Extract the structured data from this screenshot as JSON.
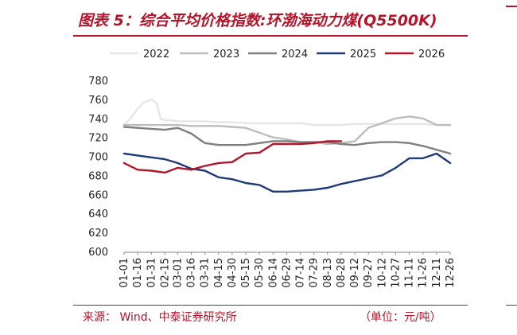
{
  "header": {
    "title": "图表 5：综合平均价格指数:环渤海动力煤(Q5500K)"
  },
  "footer": {
    "source": "来源：  Wind、中泰证券研究所",
    "unit": "（单位：元/吨）"
  },
  "colors": {
    "accent": "#b3152b",
    "s2022": "#e6e6e6",
    "s2023": "#bdbdbd",
    "s2024": "#7f7f7f",
    "s2025": "#1f3a78",
    "s2026": "#b3152b"
  },
  "chart_data": {
    "type": "line",
    "title": "",
    "xlabel": "",
    "ylabel": "",
    "ylim": [
      600,
      780
    ],
    "yticks": [
      600,
      620,
      640,
      660,
      680,
      700,
      720,
      740,
      760,
      780
    ],
    "xticks": [
      "01-01",
      "01-16",
      "01-31",
      "02-15",
      "03-01",
      "03-16",
      "03-31",
      "04-15",
      "04-30",
      "05-15",
      "05-30",
      "06-14",
      "06-29",
      "07-14",
      "07-29",
      "08-13",
      "08-28",
      "09-12",
      "09-27",
      "10-12",
      "10-27",
      "11-11",
      "11-26",
      "12-11",
      "12-26"
    ],
    "legend": {
      "position": "top",
      "entries": [
        "2022",
        "2023",
        "2024",
        "2025",
        "2026"
      ]
    },
    "grid": false,
    "series": [
      {
        "name": "2022",
        "x": [
          "01-01",
          "01-08",
          "01-16",
          "01-23",
          "01-31",
          "02-06",
          "02-10",
          "02-15",
          "02-22",
          "03-01",
          "03-16",
          "03-31",
          "04-15",
          "04-30",
          "05-15",
          "05-30",
          "06-14",
          "06-29",
          "07-14",
          "07-29",
          "08-13",
          "08-28",
          "09-12",
          "09-27",
          "10-12",
          "10-27",
          "11-11",
          "11-26",
          "12-11",
          "12-26"
        ],
        "values": [
          733,
          740,
          750,
          757,
          760,
          756,
          740,
          738,
          738,
          737,
          737,
          737,
          736,
          736,
          735,
          735,
          735,
          735,
          735,
          733,
          733,
          733,
          734,
          734,
          734,
          734,
          734,
          734,
          733,
          733
        ]
      },
      {
        "name": "2023",
        "x": [
          "01-01",
          "01-16",
          "01-31",
          "02-15",
          "03-01",
          "03-16",
          "03-31",
          "04-15",
          "04-30",
          "05-15",
          "05-30",
          "06-14",
          "06-29",
          "07-14",
          "07-29",
          "08-13",
          "08-28",
          "09-12",
          "09-27",
          "10-12",
          "10-27",
          "11-11",
          "11-26",
          "12-11",
          "12-26"
        ],
        "values": [
          733,
          733,
          733,
          733,
          733,
          732,
          732,
          732,
          731,
          730,
          725,
          720,
          718,
          715,
          715,
          713,
          714,
          716,
          730,
          735,
          740,
          742,
          740,
          733,
          733
        ]
      },
      {
        "name": "2024",
        "x": [
          "01-01",
          "01-16",
          "01-31",
          "02-15",
          "03-01",
          "03-16",
          "03-31",
          "04-15",
          "04-30",
          "05-15",
          "05-30",
          "06-14",
          "06-29",
          "07-14",
          "07-29",
          "08-13",
          "08-28",
          "09-12",
          "09-27",
          "10-12",
          "10-27",
          "11-11",
          "11-26",
          "12-11",
          "12-26"
        ],
        "values": [
          731,
          730,
          729,
          728,
          730,
          724,
          714,
          712,
          712,
          712,
          714,
          716,
          716,
          715,
          715,
          715,
          713,
          712,
          714,
          715,
          715,
          714,
          711,
          707,
          703
        ]
      },
      {
        "name": "2025",
        "x": [
          "01-01",
          "01-16",
          "01-31",
          "02-15",
          "03-01",
          "03-16",
          "03-31",
          "04-15",
          "04-30",
          "05-15",
          "05-30",
          "06-14",
          "06-29",
          "07-14",
          "07-29",
          "08-13",
          "08-28",
          "09-12",
          "09-27",
          "10-12",
          "10-27",
          "11-11",
          "11-26",
          "12-11",
          "12-26"
        ],
        "values": [
          703,
          701,
          699,
          697,
          693,
          687,
          685,
          678,
          676,
          672,
          670,
          663,
          663,
          664,
          665,
          667,
          671,
          674,
          677,
          680,
          688,
          698,
          698,
          703,
          693
        ]
      },
      {
        "name": "2026",
        "x": [
          "01-01",
          "01-16",
          "01-31",
          "02-15",
          "03-01",
          "03-16",
          "03-31",
          "04-15",
          "04-30",
          "05-15",
          "05-30",
          "06-14",
          "06-29",
          "07-14",
          "07-29",
          "08-13",
          "08-28"
        ],
        "values": [
          693,
          686,
          685,
          683,
          688,
          686,
          690,
          693,
          694,
          703,
          704,
          713,
          713,
          713,
          714,
          716,
          716
        ]
      }
    ]
  }
}
